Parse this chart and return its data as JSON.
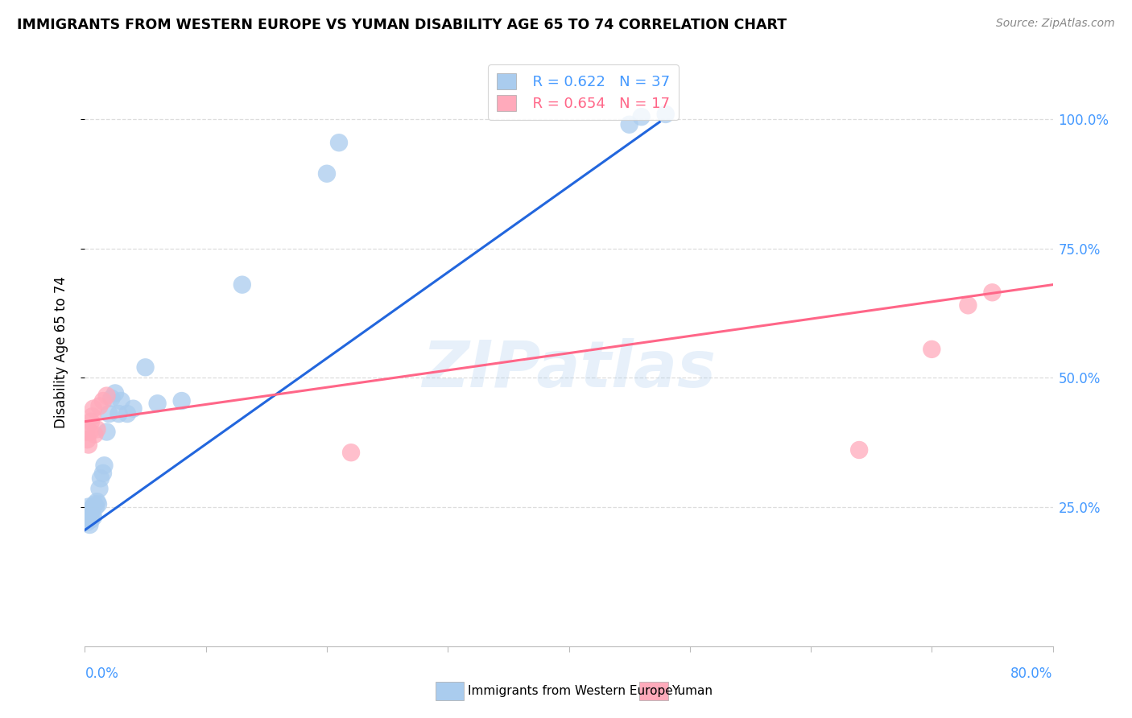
{
  "title": "IMMIGRANTS FROM WESTERN EUROPE VS YUMAN DISABILITY AGE 65 TO 74 CORRELATION CHART",
  "source": "Source: ZipAtlas.com",
  "ylabel": "Disability Age 65 to 74",
  "legend_label_blue": "Immigrants from Western Europe",
  "legend_label_pink": "Yuman",
  "legend_blue_r": "R = 0.622",
  "legend_blue_n": "N = 37",
  "legend_pink_r": "R = 0.654",
  "legend_pink_n": "N = 17",
  "watermark": "ZIPatlas",
  "xmin": 0.0,
  "xmax": 0.8,
  "ymin": -0.02,
  "ymax": 1.12,
  "blue_color": "#AACCEE",
  "pink_color": "#FFAABB",
  "blue_line_color": "#2266DD",
  "pink_line_color": "#FF6688",
  "axis_label_color": "#4499FF",
  "grid_color": "#DDDDDD",
  "blue_scatter_x": [
    0.001,
    0.001,
    0.002,
    0.003,
    0.003,
    0.004,
    0.004,
    0.005,
    0.005,
    0.006,
    0.007,
    0.007,
    0.008,
    0.009,
    0.01,
    0.011,
    0.012,
    0.013,
    0.015,
    0.016,
    0.018,
    0.02,
    0.022,
    0.025,
    0.028,
    0.03,
    0.035,
    0.04,
    0.05,
    0.06,
    0.08,
    0.13,
    0.2,
    0.21,
    0.45,
    0.46,
    0.48
  ],
  "blue_scatter_y": [
    0.225,
    0.235,
    0.22,
    0.24,
    0.25,
    0.215,
    0.23,
    0.225,
    0.245,
    0.24,
    0.23,
    0.25,
    0.255,
    0.25,
    0.26,
    0.255,
    0.285,
    0.305,
    0.315,
    0.33,
    0.395,
    0.43,
    0.46,
    0.47,
    0.43,
    0.455,
    0.43,
    0.44,
    0.52,
    0.45,
    0.455,
    0.68,
    0.895,
    0.955,
    0.99,
    1.005,
    1.01
  ],
  "pink_scatter_x": [
    0.001,
    0.002,
    0.003,
    0.004,
    0.005,
    0.006,
    0.007,
    0.008,
    0.01,
    0.012,
    0.015,
    0.018,
    0.22,
    0.64,
    0.7,
    0.73,
    0.75
  ],
  "pink_scatter_y": [
    0.395,
    0.38,
    0.37,
    0.395,
    0.415,
    0.425,
    0.44,
    0.39,
    0.4,
    0.445,
    0.455,
    0.465,
    0.355,
    0.36,
    0.555,
    0.64,
    0.665
  ],
  "blue_line_x": [
    0.0,
    0.475
  ],
  "blue_line_y": [
    0.205,
    0.995
  ],
  "pink_line_x": [
    0.0,
    0.8
  ],
  "pink_line_y": [
    0.415,
    0.68
  ],
  "ytick_positions": [
    0.25,
    0.5,
    0.75,
    1.0
  ],
  "ytick_labels": [
    "25.0%",
    "50.0%",
    "75.0%",
    "100.0%"
  ],
  "xtick_positions": [
    0.0,
    0.1,
    0.2,
    0.3,
    0.4,
    0.5,
    0.6,
    0.7,
    0.8
  ]
}
